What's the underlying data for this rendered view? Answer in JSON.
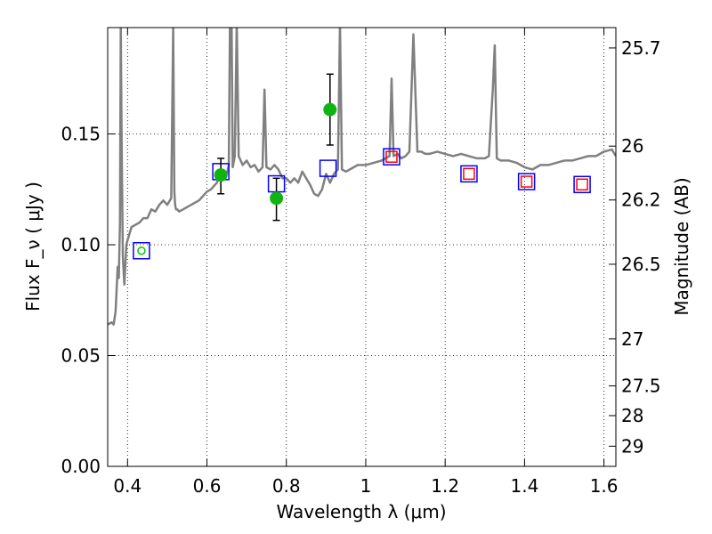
{
  "chart_data": {
    "type": "scatter",
    "xlabel": "Wavelength  λ (μm)",
    "ylabel": "Flux  F_ν  ( μJy )",
    "ylabel_right": "Magnitude (AB)",
    "xlim": [
      0.35,
      1.63
    ],
    "ylim": [
      0.0,
      0.198
    ],
    "grid": true,
    "x_ticks": [
      0.4,
      0.6,
      0.8,
      1.0,
      1.2,
      1.4,
      1.6
    ],
    "x_tick_labels": [
      "0.4",
      "0.6",
      "0.8",
      "1",
      "1.2",
      "1.4",
      "1.6"
    ],
    "y_ticks": [
      0.0,
      0.05,
      0.1,
      0.15
    ],
    "y_tick_labels": [
      "0.00",
      "0.05",
      "0.10",
      "0.15"
    ],
    "mag_ticks": [
      {
        "label": "25.7",
        "flux": 0.1888
      },
      {
        "label": "26",
        "flux": 0.1445
      },
      {
        "label": "26.2",
        "flux": 0.1202
      },
      {
        "label": "26.5",
        "flux": 0.0912
      },
      {
        "label": "27",
        "flux": 0.0575
      },
      {
        "label": "27.5",
        "flux": 0.0363
      },
      {
        "label": "28",
        "flux": 0.0229
      },
      {
        "label": "29",
        "flux": 0.0091
      }
    ],
    "series": [
      {
        "kind": "line",
        "color": "#808080",
        "x": [
          0.35,
          0.36,
          0.365,
          0.37,
          0.375,
          0.378,
          0.381,
          0.383,
          0.385,
          0.388,
          0.392,
          0.397,
          0.4,
          0.405,
          0.41,
          0.42,
          0.43,
          0.44,
          0.45,
          0.46,
          0.47,
          0.48,
          0.49,
          0.5,
          0.51,
          0.515,
          0.518,
          0.52,
          0.522,
          0.525,
          0.53,
          0.54,
          0.56,
          0.58,
          0.6,
          0.61,
          0.62,
          0.625,
          0.63,
          0.64,
          0.65,
          0.655,
          0.658,
          0.66,
          0.662,
          0.665,
          0.67,
          0.675,
          0.68,
          0.69,
          0.7,
          0.71,
          0.72,
          0.73,
          0.74,
          0.745,
          0.75,
          0.76,
          0.77,
          0.78,
          0.79,
          0.8,
          0.81,
          0.82,
          0.83,
          0.84,
          0.85,
          0.86,
          0.87,
          0.88,
          0.89,
          0.9,
          0.91,
          0.92,
          0.93,
          0.935,
          0.94,
          0.95,
          0.96,
          0.98,
          1.0,
          1.02,
          1.04,
          1.06,
          1.065,
          1.07,
          1.08,
          1.09,
          1.1,
          1.11,
          1.12,
          1.13,
          1.14,
          1.15,
          1.16,
          1.18,
          1.2,
          1.22,
          1.24,
          1.26,
          1.28,
          1.3,
          1.31,
          1.32,
          1.325,
          1.33,
          1.34,
          1.35,
          1.36,
          1.38,
          1.4,
          1.42,
          1.44,
          1.46,
          1.48,
          1.5,
          1.52,
          1.54,
          1.56,
          1.58,
          1.6,
          1.62,
          1.63
        ],
        "y": [
          0.064,
          0.065,
          0.064,
          0.07,
          0.09,
          0.085,
          0.11,
          0.2,
          0.15,
          0.095,
          0.082,
          0.1,
          0.102,
          0.105,
          0.108,
          0.109,
          0.11,
          0.112,
          0.112,
          0.116,
          0.115,
          0.118,
          0.12,
          0.118,
          0.121,
          0.198,
          0.124,
          0.118,
          0.116,
          0.116,
          0.115,
          0.116,
          0.118,
          0.12,
          0.124,
          0.125,
          0.127,
          0.128,
          0.13,
          0.13,
          0.132,
          0.136,
          0.2,
          0.2,
          0.2,
          0.135,
          0.14,
          0.2,
          0.14,
          0.136,
          0.138,
          0.135,
          0.136,
          0.133,
          0.135,
          0.17,
          0.135,
          0.134,
          0.136,
          0.134,
          0.13,
          0.13,
          0.128,
          0.13,
          0.128,
          0.133,
          0.13,
          0.127,
          0.123,
          0.122,
          0.125,
          0.132,
          0.128,
          0.132,
          0.134,
          0.2,
          0.134,
          0.133,
          0.134,
          0.136,
          0.136,
          0.137,
          0.138,
          0.14,
          0.175,
          0.14,
          0.141,
          0.139,
          0.14,
          0.142,
          0.195,
          0.142,
          0.142,
          0.141,
          0.141,
          0.142,
          0.141,
          0.14,
          0.141,
          0.14,
          0.139,
          0.139,
          0.14,
          0.17,
          0.19,
          0.139,
          0.138,
          0.138,
          0.138,
          0.137,
          0.135,
          0.134,
          0.136,
          0.136,
          0.137,
          0.138,
          0.138,
          0.139,
          0.14,
          0.14,
          0.142,
          0.143,
          0.14
        ]
      },
      {
        "kind": "squares",
        "name": "",
        "color": "#0000ff",
        "x": [
          0.435,
          0.635,
          0.775,
          0.905,
          1.065,
          1.26,
          1.405,
          1.545
        ],
        "y": [
          0.0973,
          0.133,
          0.1275,
          0.1345,
          0.1397,
          0.132,
          0.1285,
          0.1272
        ]
      },
      {
        "kind": "squares",
        "name": "",
        "color": "#ff0000",
        "x": [
          1.065,
          1.26,
          1.405,
          1.545
        ],
        "y": [
          0.1397,
          0.132,
          0.1285,
          0.1272
        ]
      },
      {
        "kind": "points",
        "name": "",
        "color": "#11b311",
        "x": [
          0.635,
          0.775,
          0.91
        ],
        "y": [
          0.1315,
          0.121,
          0.161
        ],
        "err_low": [
          0.123,
          0.111,
          0.145
        ],
        "err_high": [
          0.139,
          0.13,
          0.177
        ]
      },
      {
        "kind": "open_circle",
        "name": "",
        "color": "#00cc00",
        "x": [
          0.435
        ],
        "y": [
          0.0973
        ]
      }
    ]
  }
}
